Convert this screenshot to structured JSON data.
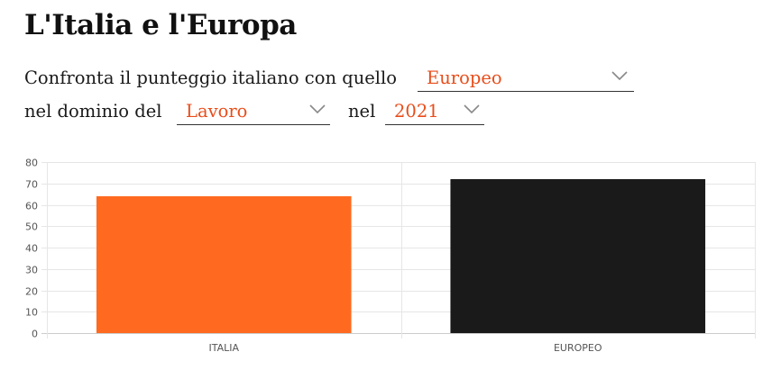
{
  "title": "L'Italia e l'Europa",
  "sentence": {
    "part1": "Confronta il punteggio italiano con quello",
    "part2": "nel dominio del",
    "part3": "nel"
  },
  "selects": {
    "comparison": {
      "value": "Europeo"
    },
    "domain": {
      "value": "Lavoro"
    },
    "year": {
      "value": "2021"
    }
  },
  "colors": {
    "accent": "#e84d1a",
    "italia_bar": "#ff6a20",
    "europeo_bar": "#1a1a1a",
    "grid": "#e6e6e6"
  },
  "chart_data": {
    "type": "bar",
    "categories": [
      "ITALIA",
      "EUROPEO"
    ],
    "values": [
      64,
      72
    ],
    "ylim": [
      0,
      80
    ],
    "yticks": [
      0,
      10,
      20,
      30,
      40,
      50,
      60,
      70,
      80
    ],
    "grid": true,
    "legend": "none",
    "title": "",
    "xlabel": "",
    "ylabel": ""
  }
}
